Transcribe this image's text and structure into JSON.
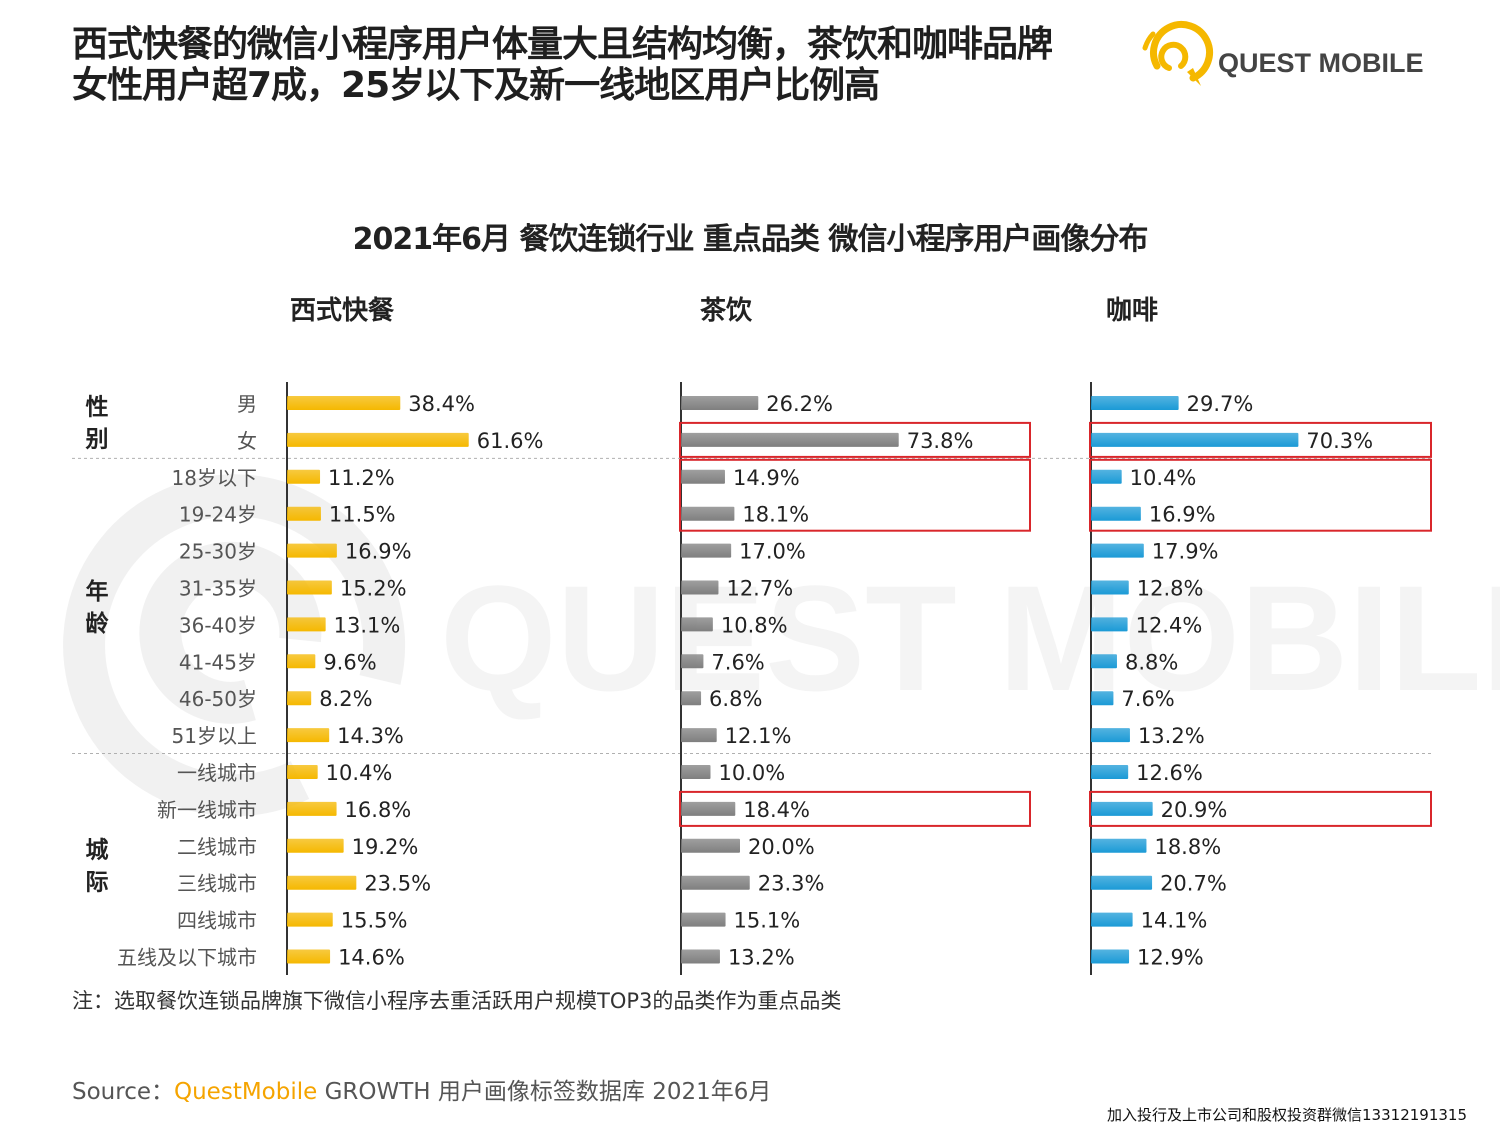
{
  "headline": {
    "line1": "西式快餐的微信小程序用户体量大且结构均衡，茶饮和咖啡品牌",
    "line2": "女性用户超7成，25岁以下及新一线地区用户比例高"
  },
  "logo": {
    "text": "QUEST MOBILE",
    "watermark_text": "QUEST MOBILE",
    "colors": {
      "ring": "#f5b800",
      "text": "#444444"
    }
  },
  "chart_data": {
    "type": "bar",
    "orientation": "horizontal",
    "title": "2021年6月 餐饮连锁行业 重点品类 微信小程序用户画像分布",
    "groups": [
      {
        "label": "性别",
        "categories": [
          "男",
          "女"
        ]
      },
      {
        "label": "年龄",
        "categories": [
          "18岁以下",
          "19-24岁",
          "25-30岁",
          "31-35岁",
          "36-40岁",
          "41-45岁",
          "46-50岁",
          "51岁以上"
        ]
      },
      {
        "label": "城际",
        "categories": [
          "一线城市",
          "新一线城市",
          "二线城市",
          "三线城市",
          "四线城市",
          "五线及以下城市"
        ]
      }
    ],
    "categories": [
      "男",
      "女",
      "18岁以下",
      "19-24岁",
      "25-30岁",
      "31-35岁",
      "36-40岁",
      "41-45岁",
      "46-50岁",
      "51岁以上",
      "一线城市",
      "新一线城市",
      "二线城市",
      "三线城市",
      "四线城市",
      "五线及以下城市"
    ],
    "unit": "%",
    "series": [
      {
        "name": "西式快餐",
        "color": "#f5b800",
        "values": [
          38.4,
          61.6,
          11.2,
          11.5,
          16.9,
          15.2,
          13.1,
          9.6,
          8.2,
          14.3,
          10.4,
          16.8,
          19.2,
          23.5,
          15.5,
          14.6
        ],
        "labels": [
          "38.4%",
          "61.6%",
          "11.2%",
          "11.5%",
          "16.9%",
          "15.2%",
          "13.1%",
          "9.6%",
          "8.2%",
          "14.3%",
          "10.4%",
          "16.8%",
          "19.2%",
          "23.5%",
          "15.5%",
          "14.6%"
        ],
        "highlight_groups": []
      },
      {
        "name": "茶饮",
        "color": "#7f7f7f",
        "values": [
          26.2,
          73.8,
          14.9,
          18.1,
          17.0,
          12.7,
          10.8,
          7.6,
          6.8,
          12.1,
          10.0,
          18.4,
          20.0,
          23.3,
          15.1,
          13.2
        ],
        "labels": [
          "26.2%",
          "73.8%",
          "14.9%",
          "18.1%",
          "17.0%",
          "12.7%",
          "10.8%",
          "7.6%",
          "6.8%",
          "12.1%",
          "10.0%",
          "18.4%",
          "20.0%",
          "23.3%",
          "15.1%",
          "13.2%"
        ],
        "highlight_groups": [
          [
            1,
            1
          ],
          [
            2,
            3
          ],
          [
            11,
            11
          ]
        ]
      },
      {
        "name": "咖啡",
        "color": "#1b9ad6",
        "values": [
          29.7,
          70.3,
          10.4,
          16.9,
          17.9,
          12.8,
          12.4,
          8.8,
          7.6,
          13.2,
          12.6,
          20.9,
          18.8,
          20.7,
          14.1,
          12.9
        ],
        "labels": [
          "29.7%",
          "70.3%",
          "10.4%",
          "16.9%",
          "17.9%",
          "12.8%",
          "12.4%",
          "8.8%",
          "7.6%",
          "13.2%",
          "12.6%",
          "20.9%",
          "18.8%",
          "20.7%",
          "14.1%",
          "12.9%"
        ],
        "highlight_groups": [
          [
            1,
            1
          ],
          [
            2,
            3
          ],
          [
            11,
            11
          ]
        ]
      }
    ],
    "highlight_color": "#d9262b",
    "xlim": [
      0,
      100
    ]
  },
  "note": "注：选取餐饮连锁品牌旗下微信小程序去重活跃用户规模TOP3的品类作为重点品类",
  "source": {
    "prefix": "Source：",
    "brand": "QuestMobile",
    "rest": " GROWTH 用户画像标签数据库 2021年6月"
  },
  "footer": "加入投行及上市公司和股权投资群微信13312191315"
}
